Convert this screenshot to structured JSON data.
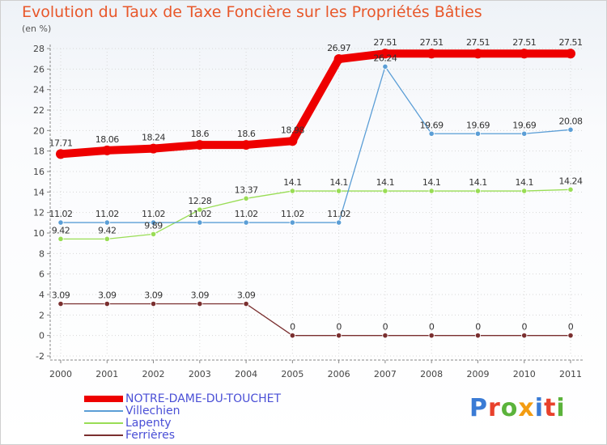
{
  "title": "Evolution du Taux de Taxe Foncière sur les Propriétés Bâties",
  "unit": "(en %)",
  "brand": [
    "P",
    "r",
    "o",
    "x",
    "i",
    "t",
    "i"
  ],
  "brand_colors": [
    "#3a7bd5",
    "#e8412c",
    "#5bb33b",
    "#f39c12",
    "#3a7bd5",
    "#e8412c",
    "#5bb33b"
  ],
  "chart_data": {
    "type": "line",
    "title": "Evolution du Taux de Taxe Foncière sur les Propriétés Bâties",
    "xlabel": "",
    "ylabel": "(en %)",
    "ylim": [
      -2,
      28
    ],
    "yticks": [
      "-2",
      "0",
      "2",
      "4",
      "6",
      "8",
      "10",
      "12",
      "14",
      "16",
      "18",
      "20",
      "22",
      "24",
      "26",
      "28"
    ],
    "categories": [
      "2000",
      "2001",
      "2002",
      "2003",
      "2004",
      "2005",
      "2006",
      "2007",
      "2008",
      "2009",
      "2010",
      "2011"
    ],
    "series": [
      {
        "name": "NOTRE-DAME-DU-TOUCHET",
        "color": "#ee0000",
        "values": [
          17.71,
          18.06,
          18.24,
          18.6,
          18.6,
          18.98,
          26.97,
          27.51,
          27.51,
          27.51,
          27.51,
          27.51
        ],
        "labels": [
          "17.71",
          "18.06",
          "18.24",
          "18.6",
          "18.6",
          "18.98",
          "26.97",
          "27.51",
          "27.51",
          "27.51",
          "27.51",
          "27.51"
        ]
      },
      {
        "name": "Villechien",
        "color": "#5b9ed6",
        "values": [
          11.02,
          11.02,
          11.02,
          11.02,
          11.02,
          11.02,
          11.02,
          26.24,
          19.69,
          19.69,
          19.69,
          20.08
        ],
        "labels": [
          "11.02",
          "11.02",
          "11.02",
          "11.02",
          "11.02",
          "11.02",
          "11.02",
          "26.24",
          "19.69",
          "19.69",
          "19.69",
          "20.08"
        ]
      },
      {
        "name": "Lapenty",
        "color": "#99dd55",
        "values": [
          9.42,
          9.42,
          9.89,
          12.28,
          13.37,
          14.1,
          14.1,
          14.1,
          14.1,
          14.1,
          14.1,
          14.24
        ],
        "labels": [
          "9.42",
          "9.42",
          "9.89",
          "12.28",
          "13.37",
          "14.1",
          "14.1",
          "14.1",
          "14.1",
          "14.1",
          "14.1",
          "14.24"
        ]
      },
      {
        "name": "Ferrières",
        "color": "#7a2f2f",
        "values": [
          3.09,
          3.09,
          3.09,
          3.09,
          3.09,
          0,
          0,
          0,
          0,
          0,
          0,
          0
        ],
        "labels": [
          "3.09",
          "3.09",
          "3.09",
          "3.09",
          "3.09",
          "0",
          "0",
          "0",
          "0",
          "0",
          "0",
          "0"
        ]
      }
    ]
  }
}
